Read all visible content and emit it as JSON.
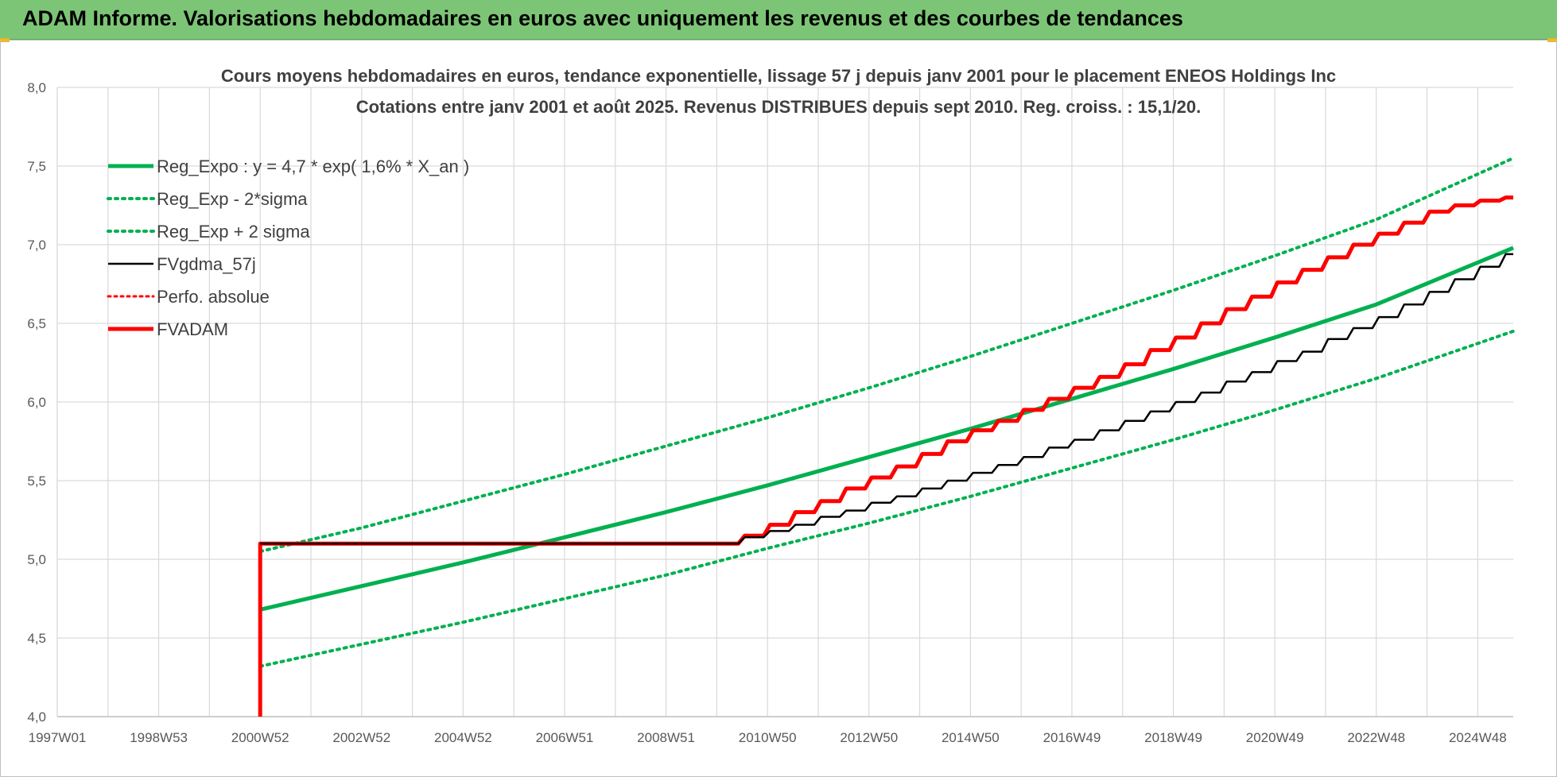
{
  "header": {
    "title": "ADAM Informe. Valorisations hebdomadaires en euros avec uniquement les revenus et des courbes de tendances"
  },
  "chart_data": {
    "type": "line",
    "title_line1": "Cours moyens hebdomadaires en euros, tendance exponentielle, lissage 57 j depuis janv 2001 pour le placement ENEOS Holdings Inc",
    "title_line2": "Cotations entre janv 2001 et août 2025. Revenus DISTRIBUES depuis sept 2010. Reg. croiss. : 15,1/20.",
    "x_ticks": [
      "1997W01",
      "1998W53",
      "2000W52",
      "2002W52",
      "2004W52",
      "2006W51",
      "2008W51",
      "2010W50",
      "2012W50",
      "2014W50",
      "2016W49",
      "2018W49",
      "2020W49",
      "2022W48",
      "2024W48"
    ],
    "x_tick_years": [
      1997,
      1999,
      2001,
      2003,
      2005,
      2007,
      2009,
      2011,
      2013,
      2015,
      2017,
      2019,
      2021,
      2023,
      2025
    ],
    "xlim": [
      1997,
      2025.7
    ],
    "ylim": [
      4.0,
      8.0
    ],
    "y_ticks": [
      "4,0",
      "4,5",
      "5,0",
      "5,5",
      "6,0",
      "6,5",
      "7,0",
      "7,5",
      "8,0"
    ],
    "y_tick_values": [
      4.0,
      4.5,
      5.0,
      5.5,
      6.0,
      6.5,
      7.0,
      7.5,
      8.0
    ],
    "grid": true,
    "legend_position": "top-left",
    "colors": {
      "green": "#00b050",
      "red": "#ff0000",
      "black": "#000000"
    },
    "series": [
      {
        "name": "Reg_Expo : y = 4,7 * exp( 1,6% *  X_an )",
        "style": "solid-green",
        "x": [
          2001,
          2003,
          2005,
          2007,
          2009,
          2011,
          2013,
          2015,
          2017,
          2019,
          2021,
          2023,
          2025.7
        ],
        "y": [
          4.68,
          4.83,
          4.98,
          5.14,
          5.3,
          5.47,
          5.65,
          5.83,
          6.02,
          6.21,
          6.41,
          6.62,
          6.98
        ]
      },
      {
        "name": "Reg_Exp - 2*sigma",
        "style": "dotted-green",
        "x": [
          2001,
          2003,
          2005,
          2007,
          2009,
          2011,
          2013,
          2015,
          2017,
          2019,
          2021,
          2023,
          2025.7
        ],
        "y": [
          4.32,
          4.46,
          4.6,
          4.75,
          4.9,
          5.07,
          5.23,
          5.4,
          5.58,
          5.76,
          5.95,
          6.15,
          6.45
        ]
      },
      {
        "name": "Reg_Exp + 2 sigma",
        "style": "dotted-green",
        "x": [
          2001,
          2003,
          2005,
          2007,
          2009,
          2011,
          2013,
          2015,
          2017,
          2019,
          2021,
          2023,
          2025.7
        ],
        "y": [
          5.05,
          5.2,
          5.37,
          5.54,
          5.72,
          5.9,
          6.09,
          6.29,
          6.5,
          6.71,
          6.93,
          7.16,
          7.55
        ]
      },
      {
        "name": "FVgdma_57j",
        "style": "solid-black",
        "x": [
          2001,
          2010.2,
          2010.7,
          2011.2,
          2011.7,
          2012.2,
          2012.7,
          2013.2,
          2013.7,
          2014.2,
          2014.7,
          2015.2,
          2015.7,
          2016.2,
          2016.7,
          2017.2,
          2017.7,
          2018.2,
          2018.7,
          2019.2,
          2019.7,
          2020.2,
          2020.7,
          2021.2,
          2021.7,
          2022.2,
          2022.7,
          2023.2,
          2023.7,
          2024.2,
          2024.7,
          2025.2,
          2025.7
        ],
        "y": [
          5.1,
          5.1,
          5.14,
          5.18,
          5.22,
          5.27,
          5.31,
          5.36,
          5.4,
          5.45,
          5.5,
          5.55,
          5.6,
          5.65,
          5.71,
          5.76,
          5.82,
          5.88,
          5.94,
          6.0,
          6.06,
          6.13,
          6.19,
          6.26,
          6.32,
          6.4,
          6.47,
          6.54,
          6.62,
          6.7,
          6.78,
          6.86,
          6.94
        ]
      },
      {
        "name": "Perfo. absolue",
        "style": "dotted-red",
        "x": [],
        "y": []
      },
      {
        "name": "FVADAM",
        "style": "solid-red",
        "x": [
          2001,
          2001,
          2010.2,
          2010.7,
          2011.2,
          2011.7,
          2012.2,
          2012.7,
          2013.2,
          2013.7,
          2014.2,
          2014.7,
          2015.2,
          2015.7,
          2016.2,
          2016.7,
          2017.2,
          2017.7,
          2018.2,
          2018.7,
          2019.2,
          2019.7,
          2020.2,
          2020.7,
          2021.2,
          2021.7,
          2022.2,
          2022.7,
          2023.2,
          2023.7,
          2024.2,
          2024.7,
          2025.2,
          2025.7
        ],
        "y": [
          4.0,
          5.1,
          5.1,
          5.15,
          5.22,
          5.3,
          5.37,
          5.45,
          5.52,
          5.59,
          5.67,
          5.75,
          5.82,
          5.88,
          5.95,
          6.02,
          6.09,
          6.16,
          6.24,
          6.33,
          6.41,
          6.5,
          6.59,
          6.67,
          6.76,
          6.84,
          6.92,
          7.0,
          7.07,
          7.14,
          7.21,
          7.25,
          7.28,
          7.3
        ]
      }
    ]
  }
}
